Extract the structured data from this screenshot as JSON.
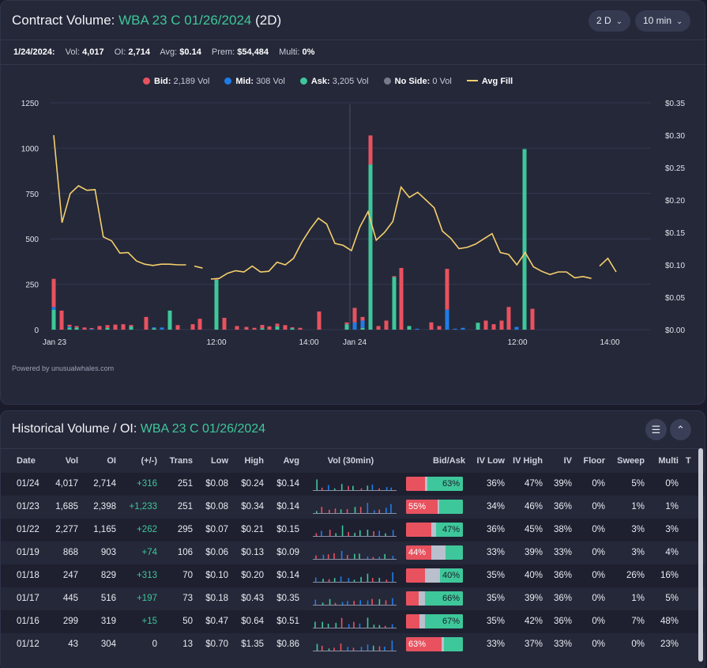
{
  "header": {
    "title_prefix": "Contract Volume: ",
    "contract": "WBA 23 C 01/26/2024",
    "period": "(2D)",
    "range_select": "2 D",
    "interval_select": "10 min"
  },
  "stats": {
    "date": "1/24/2024:",
    "vol_label": "Vol:",
    "vol": "4,017",
    "oi_label": "OI:",
    "oi": "2,714",
    "avg_label": "Avg:",
    "avg": "$0.14",
    "prem_label": "Prem:",
    "prem": "$54,484",
    "multi_label": "Multi:",
    "multi": "0%"
  },
  "legend": [
    {
      "name": "Bid:",
      "value": "2,189 Vol",
      "color": "#e8525f"
    },
    {
      "name": "Mid:",
      "value": "308 Vol",
      "color": "#1e7de6"
    },
    {
      "name": "Ask:",
      "value": "3,205 Vol",
      "color": "#3ec79a"
    },
    {
      "name": "No Side:",
      "value": "0 Vol",
      "color": "#777b8c"
    },
    {
      "name": "Avg Fill",
      "value": "",
      "color": "#f5cf6b"
    }
  ],
  "powered_by": "Powered by unusualwhales.com",
  "chart_data": {
    "type": "bar",
    "x_ticks": [
      "Jan 23",
      "12:00",
      "14:00",
      "Jan 24",
      "12:00",
      "14:00"
    ],
    "y_left_ticks": [
      "0",
      "250",
      "500",
      "750",
      "1000",
      "1250"
    ],
    "y_right_ticks": [
      "$0.00",
      "$0.05",
      "$0.10",
      "$0.15",
      "$0.20",
      "$0.25",
      "$0.30",
      "$0.35"
    ],
    "ylim_left": [
      0,
      1250
    ],
    "ylim_right": [
      0,
      0.35
    ],
    "bars": [
      {
        "i": 0,
        "bid": 155,
        "mid": 15,
        "ask": 110
      },
      {
        "i": 1,
        "bid": 105,
        "mid": 0,
        "ask": 0
      },
      {
        "i": 2,
        "bid": 10,
        "mid": 5,
        "ask": 12
      },
      {
        "i": 3,
        "bid": 8,
        "mid": 0,
        "ask": 12
      },
      {
        "i": 4,
        "bid": 12,
        "mid": 0,
        "ask": 0
      },
      {
        "i": 5,
        "bid": 5,
        "mid": 4,
        "ask": 0
      },
      {
        "i": 6,
        "bid": 20,
        "mid": 0,
        "ask": 0
      },
      {
        "i": 7,
        "bid": 15,
        "mid": 0,
        "ask": 10
      },
      {
        "i": 8,
        "bid": 28,
        "mid": 0,
        "ask": 0
      },
      {
        "i": 9,
        "bid": 30,
        "mid": 0,
        "ask": 0
      },
      {
        "i": 10,
        "bid": 8,
        "mid": 0,
        "ask": 18
      },
      {
        "i": 11,
        "bid": 70,
        "mid": 0,
        "ask": 0
      },
      {
        "i": 12,
        "bid": 0,
        "mid": 5,
        "ask": 8
      },
      {
        "i": 13,
        "bid": 0,
        "mid": 12,
        "ask": 0
      },
      {
        "i": 14,
        "bid": 0,
        "mid": 0,
        "ask": 105
      },
      {
        "i": 15,
        "bid": 25,
        "mid": 0,
        "ask": 0
      },
      {
        "i": 16,
        "bid": 30,
        "mid": 0,
        "ask": 0
      },
      {
        "i": 17,
        "bid": 60,
        "mid": 0,
        "ask": 0
      },
      {
        "i": 18,
        "bid": 5,
        "mid": 0,
        "ask": 275
      },
      {
        "i": 19,
        "bid": 65,
        "mid": 0,
        "ask": 0
      },
      {
        "i": 20,
        "bid": 20,
        "mid": 0,
        "ask": 0
      },
      {
        "i": 21,
        "bid": 15,
        "mid": 0,
        "ask": 0
      },
      {
        "i": 22,
        "bid": 10,
        "mid": 0,
        "ask": 0
      },
      {
        "i": 23,
        "bid": 18,
        "mid": 0,
        "ask": 8
      },
      {
        "i": 24,
        "bid": 18,
        "mid": 0,
        "ask": 0
      },
      {
        "i": 25,
        "bid": 15,
        "mid": 0,
        "ask": 18
      },
      {
        "i": 26,
        "bid": 25,
        "mid": 0,
        "ask": 0
      },
      {
        "i": 27,
        "bid": 5,
        "mid": 0,
        "ask": 8
      },
      {
        "i": 28,
        "bid": 10,
        "mid": 0,
        "ask": 0
      },
      {
        "i": 29,
        "bid": 100,
        "mid": 0,
        "ask": 0
      },
      {
        "i": 30,
        "bid": 10,
        "mid": 0,
        "ask": 30
      },
      {
        "i": 31,
        "bid": 80,
        "mid": 40,
        "ask": 0
      },
      {
        "i": 32,
        "bid": 20,
        "mid": 40,
        "ask": 10
      },
      {
        "i": 33,
        "bid": 160,
        "mid": 0,
        "ask": 910
      },
      {
        "i": 34,
        "bid": 20,
        "mid": 0,
        "ask": 0
      },
      {
        "i": 35,
        "bid": 50,
        "mid": 0,
        "ask": 0
      },
      {
        "i": 36,
        "bid": 5,
        "mid": 0,
        "ask": 290
      },
      {
        "i": 37,
        "bid": 340,
        "mid": 0,
        "ask": 0
      },
      {
        "i": 38,
        "bid": 0,
        "mid": 0,
        "ask": 20
      },
      {
        "i": 39,
        "bid": 0,
        "mid": 5,
        "ask": 0
      },
      {
        "i": 40,
        "bid": 40,
        "mid": 0,
        "ask": 0
      },
      {
        "i": 41,
        "bid": 20,
        "mid": 0,
        "ask": 0
      },
      {
        "i": 42,
        "bid": 225,
        "mid": 110,
        "ask": 0
      },
      {
        "i": 43,
        "bid": 0,
        "mid": 5,
        "ask": 0
      },
      {
        "i": 44,
        "bid": 0,
        "mid": 10,
        "ask": 0
      },
      {
        "i": 45,
        "bid": 0,
        "mid": 0,
        "ask": 38
      },
      {
        "i": 46,
        "bid": 50,
        "mid": 0,
        "ask": 0
      },
      {
        "i": 47,
        "bid": 30,
        "mid": 0,
        "ask": 0
      },
      {
        "i": 48,
        "bid": 50,
        "mid": 0,
        "ask": 0
      },
      {
        "i": 49,
        "bid": 125,
        "mid": 0,
        "ask": 0
      },
      {
        "i": 50,
        "bid": 0,
        "mid": 15,
        "ask": 0
      },
      {
        "i": 51,
        "bid": 0,
        "mid": 0,
        "ask": 995
      },
      {
        "i": 52,
        "bid": 115,
        "mid": 0,
        "ask": 0
      }
    ],
    "avg_fill": [
      [
        0,
        0.3
      ],
      [
        1,
        0.165
      ],
      [
        2,
        0.21
      ],
      [
        3,
        0.222
      ],
      [
        4,
        0.215
      ],
      [
        5,
        0.216
      ],
      [
        6,
        0.143
      ],
      [
        7,
        0.137
      ],
      [
        8,
        0.118
      ],
      [
        9,
        0.119
      ],
      [
        10,
        0.106
      ],
      [
        11,
        0.101
      ],
      [
        12,
        0.099
      ],
      [
        13,
        0.101
      ],
      [
        14,
        0.101
      ],
      [
        15,
        0.1
      ],
      [
        16,
        0.1
      ],
      null,
      [
        17,
        0.098
      ],
      [
        18,
        0.095
      ],
      null,
      [
        19,
        0.078
      ],
      [
        20,
        0.079
      ],
      [
        21,
        0.087
      ],
      [
        22,
        0.091
      ],
      [
        23,
        0.089
      ],
      [
        24,
        0.098
      ],
      [
        25,
        0.089
      ],
      [
        26,
        0.09
      ],
      [
        27,
        0.104
      ],
      [
        28,
        0.1
      ],
      [
        29,
        0.11
      ],
      [
        30,
        0.135
      ],
      [
        31,
        0.155
      ],
      [
        32,
        0.172
      ],
      [
        33,
        0.163
      ],
      [
        34,
        0.133
      ],
      [
        35,
        0.13
      ],
      [
        36,
        0.122
      ],
      [
        37,
        0.158
      ],
      [
        38,
        0.182
      ],
      [
        39,
        0.138
      ],
      [
        40,
        0.15
      ],
      [
        41,
        0.167
      ],
      [
        42,
        0.22
      ],
      [
        43,
        0.204
      ],
      [
        44,
        0.212
      ],
      [
        45,
        0.2
      ],
      [
        46,
        0.188
      ],
      [
        47,
        0.152
      ],
      [
        48,
        0.141
      ],
      [
        49,
        0.125
      ],
      [
        50,
        0.127
      ],
      [
        51,
        0.132
      ],
      [
        52,
        0.14
      ],
      [
        53,
        0.148
      ],
      [
        54,
        0.119
      ],
      [
        55,
        0.116
      ],
      [
        56,
        0.1
      ],
      [
        57,
        0.119
      ],
      [
        58,
        0.097
      ],
      [
        59,
        0.09
      ],
      [
        60,
        0.085
      ],
      [
        61,
        0.089
      ],
      [
        62,
        0.089
      ],
      [
        63,
        0.08
      ],
      [
        64,
        0.082
      ],
      [
        65,
        0.079
      ],
      null,
      [
        66,
        0.098
      ],
      [
        67,
        0.11
      ],
      [
        68,
        0.089
      ]
    ]
  },
  "history": {
    "title_prefix": "Historical Volume / OI: ",
    "contract": "WBA 23 C 01/26/2024",
    "columns": [
      "Date",
      "Vol",
      "OI",
      "(+/-)",
      "Trans",
      "Low",
      "High",
      "Avg",
      "Vol (30min)",
      "Bid/Ask",
      "IV Low",
      "IV High",
      "IV",
      "Floor",
      "Sweep",
      "Multi",
      "T"
    ],
    "rows": [
      {
        "date": "01/24",
        "vol": "4,017",
        "oi": "2,714",
        "chg": "+316",
        "trans": "251",
        "low": "$0.08",
        "high": "$0.24",
        "avg": "$0.14",
        "bid": 0.33,
        "mid": 0.04,
        "ask": 0.63,
        "ba_label": "63%",
        "label_side": "ask",
        "iv_low": "36%",
        "iv_high": "47%",
        "iv": "39%",
        "floor": "0%",
        "sweep": "5%",
        "multi": "0%"
      },
      {
        "date": "01/23",
        "vol": "1,685",
        "oi": "2,398",
        "chg": "+1,233",
        "trans": "251",
        "low": "$0.08",
        "high": "$0.34",
        "avg": "$0.14",
        "bid": 0.55,
        "mid": 0.03,
        "ask": 0.42,
        "ba_label": "55%",
        "label_side": "bid",
        "iv_low": "34%",
        "iv_high": "46%",
        "iv": "36%",
        "floor": "0%",
        "sweep": "1%",
        "multi": "1%"
      },
      {
        "date": "01/22",
        "vol": "2,277",
        "oi": "1,165",
        "chg": "+262",
        "trans": "295",
        "low": "$0.07",
        "high": "$0.21",
        "avg": "$0.15",
        "bid": 0.44,
        "mid": 0.09,
        "ask": 0.47,
        "ba_label": "47%",
        "label_side": "ask",
        "iv_low": "36%",
        "iv_high": "45%",
        "iv": "38%",
        "floor": "0%",
        "sweep": "3%",
        "multi": "3%"
      },
      {
        "date": "01/19",
        "vol": "868",
        "oi": "903",
        "chg": "+74",
        "trans": "106",
        "low": "$0.06",
        "high": "$0.13",
        "avg": "$0.09",
        "bid": 0.44,
        "mid": 0.26,
        "ask": 0.3,
        "ba_label": "44%",
        "label_side": "bid",
        "iv_low": "33%",
        "iv_high": "39%",
        "iv": "33%",
        "floor": "0%",
        "sweep": "3%",
        "multi": "4%"
      },
      {
        "date": "01/18",
        "vol": "247",
        "oi": "829",
        "chg": "+313",
        "trans": "70",
        "low": "$0.10",
        "high": "$0.20",
        "avg": "$0.14",
        "bid": 0.33,
        "mid": 0.27,
        "ask": 0.4,
        "ba_label": "40%",
        "label_side": "ask",
        "iv_low": "35%",
        "iv_high": "40%",
        "iv": "36%",
        "floor": "0%",
        "sweep": "26%",
        "multi": "16%"
      },
      {
        "date": "01/17",
        "vol": "445",
        "oi": "516",
        "chg": "+197",
        "trans": "73",
        "low": "$0.18",
        "high": "$0.43",
        "avg": "$0.35",
        "bid": 0.22,
        "mid": 0.12,
        "ask": 0.66,
        "ba_label": "66%",
        "label_side": "ask",
        "iv_low": "35%",
        "iv_high": "39%",
        "iv": "36%",
        "floor": "0%",
        "sweep": "1%",
        "multi": "5%"
      },
      {
        "date": "01/16",
        "vol": "299",
        "oi": "319",
        "chg": "+15",
        "trans": "50",
        "low": "$0.47",
        "high": "$0.64",
        "avg": "$0.51",
        "bid": 0.24,
        "mid": 0.09,
        "ask": 0.67,
        "ba_label": "67%",
        "label_side": "ask",
        "iv_low": "35%",
        "iv_high": "42%",
        "iv": "36%",
        "floor": "0%",
        "sweep": "7%",
        "multi": "48%"
      },
      {
        "date": "01/12",
        "vol": "43",
        "oi": "304",
        "chg": "0",
        "trans": "13",
        "low": "$0.70",
        "high": "$1.35",
        "avg": "$0.86",
        "bid": 0.63,
        "mid": 0.03,
        "ask": 0.34,
        "ba_label": "63%",
        "label_side": "bid",
        "iv_low": "33%",
        "iv_high": "37%",
        "iv": "33%",
        "floor": "0%",
        "sweep": "0%",
        "multi": "23%"
      }
    ]
  },
  "colors": {
    "bid": "#e8525f",
    "mid": "#1e7de6",
    "ask": "#3ec79a",
    "avg": "#f5cf6b",
    "neutral": "#b9bfcc"
  }
}
